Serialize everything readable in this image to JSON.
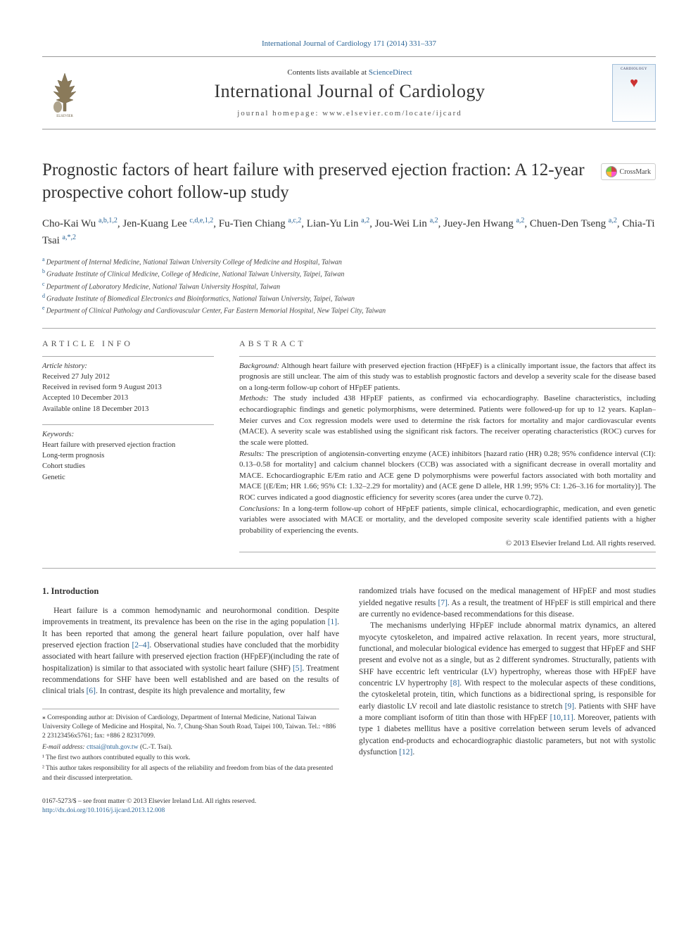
{
  "top_link": "International Journal of Cardiology 171 (2014) 331–337",
  "masthead": {
    "contents_pre": "Contents lists available at ",
    "contents_link": "ScienceDirect",
    "journal_name": "International Journal of Cardiology",
    "homepage_label": "journal homepage: www.elsevier.com/locate/ijcard",
    "cover_title": "CARDIOLOGY"
  },
  "crossmark_label": "CrossMark",
  "article": {
    "title": "Prognostic factors of heart failure with preserved ejection fraction: A 12-year prospective cohort follow-up study",
    "authors_html": [
      {
        "name": "Cho-Kai Wu ",
        "sup": "a,b,1,2"
      },
      {
        "name": ", Jen-Kuang Lee ",
        "sup": "c,d,e,1,2"
      },
      {
        "name": ", Fu-Tien Chiang ",
        "sup": "a,c,2"
      },
      {
        "name": ", Lian-Yu Lin ",
        "sup": "a,2"
      },
      {
        "name": ", Jou-Wei Lin ",
        "sup": "a,2"
      },
      {
        "name": ", Juey-Jen Hwang ",
        "sup": "a,2"
      },
      {
        "name": ", Chuen-Den Tseng ",
        "sup": "a,2"
      },
      {
        "name": ", Chia-Ti Tsai ",
        "sup": "a,*,2"
      }
    ],
    "affiliations": [
      {
        "key": "a",
        "text": "Department of Internal Medicine, National Taiwan University College of Medicine and Hospital, Taiwan"
      },
      {
        "key": "b",
        "text": "Graduate Institute of Clinical Medicine, College of Medicine, National Taiwan University, Taipei, Taiwan"
      },
      {
        "key": "c",
        "text": "Department of Laboratory Medicine, National Taiwan University Hospital, Taiwan"
      },
      {
        "key": "d",
        "text": "Graduate Institute of Biomedical Electronics and Bioinformatics, National Taiwan University, Taipei, Taiwan"
      },
      {
        "key": "e",
        "text": "Department of Clinical Pathology and Cardiovascular Center, Far Eastern Memorial Hospital, New Taipei City, Taiwan"
      }
    ]
  },
  "info": {
    "label": "ARTICLE INFO",
    "history_label": "Article history:",
    "history": [
      "Received 27 July 2012",
      "Received in revised form 9 August 2013",
      "Accepted 10 December 2013",
      "Available online 18 December 2013"
    ],
    "keywords_label": "Keywords:",
    "keywords": [
      "Heart failure with preserved ejection fraction",
      "Long-term prognosis",
      "Cohort studies",
      "Genetic"
    ]
  },
  "abstract": {
    "label": "ABSTRACT",
    "sections": [
      {
        "k": "Background:",
        "t": " Although heart failure with preserved ejection fraction (HFpEF) is a clinically important issue, the factors that affect its prognosis are still unclear. The aim of this study was to establish prognostic factors and develop a severity scale for the disease based on a long-term follow-up cohort of HFpEF patients."
      },
      {
        "k": "Methods:",
        "t": " The study included 438 HFpEF patients, as confirmed via echocardiography. Baseline characteristics, including echocardiographic findings and genetic polymorphisms, were determined. Patients were followed-up for up to 12 years. Kaplan–Meier curves and Cox regression models were used to determine the risk factors for mortality and major cardiovascular events (MACE). A severity scale was established using the significant risk factors. The receiver operating characteristics (ROC) curves for the scale were plotted."
      },
      {
        "k": "Results:",
        "t": " The prescription of angiotensin-converting enzyme (ACE) inhibitors [hazard ratio (HR) 0.28; 95% confidence interval (CI): 0.13–0.58 for mortality] and calcium channel blockers (CCB) was associated with a significant decrease in overall mortality and MACE. Echocardiographic E/Em ratio and ACE gene D polymorphisms were powerful factors associated with both mortality and MACE [(E/Em; HR 1.66; 95% CI: 1.32–2.29 for mortality) and (ACE gene D allele, HR 1.99; 95% CI: 1.26–3.16 for mortality)]. The ROC curves indicated a good diagnostic efficiency for severity scores (area under the curve 0.72)."
      },
      {
        "k": "Conclusions:",
        "t": " In a long-term follow-up cohort of HFpEF patients, simple clinical, echocardiographic, medication, and even genetic variables were associated with MACE or mortality, and the developed composite severity scale identified patients with a higher probability of experiencing the events."
      }
    ],
    "copyright": "© 2013 Elsevier Ireland Ltd. All rights reserved."
  },
  "body": {
    "intro_heading": "1. Introduction",
    "p1a": "Heart failure is a common hemodynamic and neurohormonal condition. Despite improvements in treatment, its prevalence has been on the rise in the aging population ",
    "r1": "[1]",
    "p1b": ". It has been reported that among the general heart failure population, over half have preserved ejection fraction ",
    "r24": "[2–4]",
    "p1c": ". Observational studies have concluded that the morbidity associated with heart failure with preserved ejection fraction (HFpEF)(including the rate of hospitalization) is similar to that associated with systolic heart failure (SHF) ",
    "r5": "[5]",
    "p1d": ". Treatment recommendations for SHF have been well established and are based on the results of clinical trials ",
    "r6": "[6]",
    "p1e": ". In contrast, despite its high prevalence and mortality, few ",
    "p2a": "randomized trials have focused on the medical management of HFpEF and most studies yielded negative results ",
    "r7": "[7]",
    "p2b": ". As a result, the treatment of HFpEF is still empirical and there are currently no evidence-based recommendations for this disease.",
    "p3a": "The mechanisms underlying HFpEF include abnormal matrix dynamics, an altered myocyte cytoskeleton, and impaired active relaxation. In recent years, more structural, functional, and molecular biological evidence has emerged to suggest that HFpEF and SHF present and evolve not as a single, but as 2 different syndromes. Structurally, patients with SHF have eccentric left ventricular (LV) hypertrophy, whereas those with HFpEF have concentric LV hypertrophy ",
    "r8": "[8]",
    "p3b": ". With respect to the molecular aspects of these conditions, the cytoskeletal protein, titin, which functions as a bidirectional spring, is responsible for early diastolic LV recoil and late diastolic resistance to stretch ",
    "r9": "[9]",
    "p3c": ". Patients with SHF have a more compliant isoform of titin than those with HFpEF ",
    "r1011": "[10,11]",
    "p3d": ". Moreover, patients with type 1 diabetes mellitus have a positive correlation between serum levels of advanced glycation end-products and echocardiographic diastolic parameters, but not with systolic dysfunction ",
    "r12": "[12]",
    "p3e": "."
  },
  "footnotes": {
    "corr": "⁎ Corresponding author at: Division of Cardiology, Department of Internal Medicine, National Taiwan University College of Medicine and Hospital, No. 7, Chung-Shan South Road, Taipei 100, Taiwan. Tel.: +886 2 23123456x5761; fax: +886 2 82317099.",
    "email_label": "E-mail address: ",
    "email": "cttsai@ntuh.gov.tw",
    "email_tail": " (C.-T. Tsai).",
    "f1": "¹ The first two authors contributed equally to this work.",
    "f2": "² This author takes responsibility for all aspects of the reliability and freedom from bias of the data presented and their discussed interpretation."
  },
  "footer": {
    "line1": "0167-5273/$ – see front matter © 2013 Elsevier Ireland Ltd. All rights reserved.",
    "doi": "http://dx.doi.org/10.1016/j.ijcard.2013.12.008"
  },
  "colors": {
    "link": "#2a6496",
    "rule": "#aaaaaa",
    "text": "#333333"
  }
}
